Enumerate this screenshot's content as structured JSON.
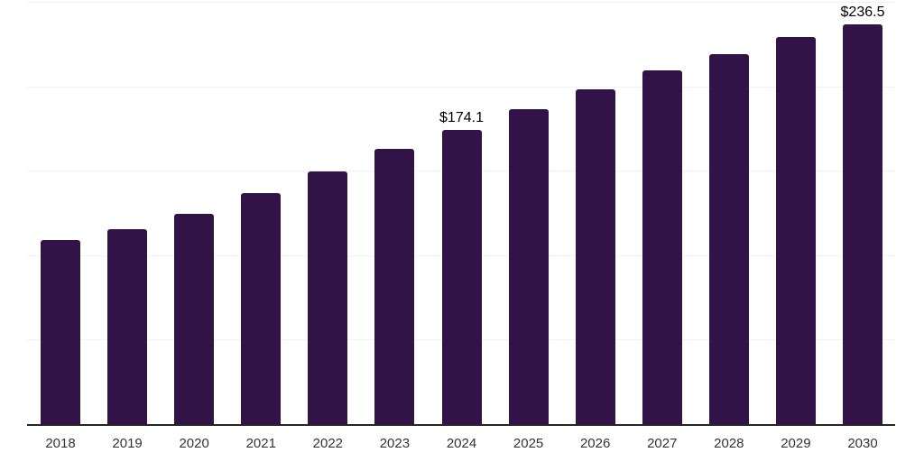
{
  "chart_data": {
    "type": "bar",
    "title": "",
    "xlabel": "",
    "ylabel": "",
    "categories": [
      "2018",
      "2019",
      "2020",
      "2021",
      "2022",
      "2023",
      "2024",
      "2025",
      "2026",
      "2027",
      "2028",
      "2029",
      "2030"
    ],
    "values": [
      109.0,
      115.4,
      124.5,
      136.8,
      149.6,
      162.9,
      174.1,
      186.4,
      198.2,
      209.4,
      219.0,
      229.2,
      236.5
    ],
    "data_labels": {
      "2024": "$174.1",
      "2030": "$236.5"
    },
    "ylim": [
      0,
      250
    ],
    "gridline_values": [
      50,
      100,
      150,
      200,
      250
    ],
    "grid": "horizontal-only",
    "legend": "none",
    "colors": {
      "bar": "#311347",
      "gridline": "#f2f2f2",
      "axis": "#262626",
      "tick_label": "#333333",
      "data_label": "#000000",
      "background": "#ffffff"
    }
  }
}
